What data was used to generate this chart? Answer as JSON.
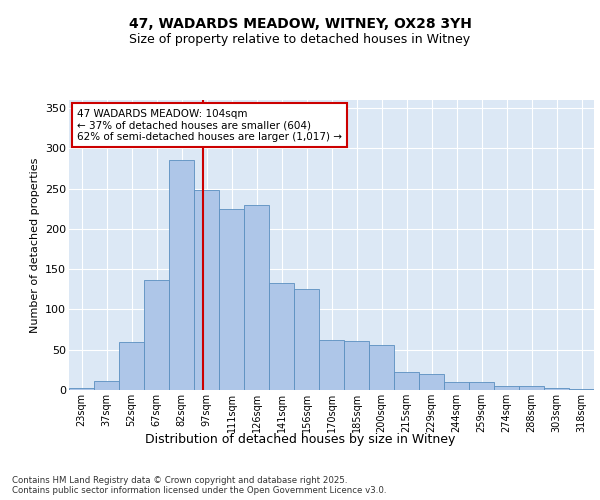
{
  "title_line1": "47, WADARDS MEADOW, WITNEY, OX28 3YH",
  "title_line2": "Size of property relative to detached houses in Witney",
  "xlabel": "Distribution of detached houses by size in Witney",
  "ylabel": "Number of detached properties",
  "categories": [
    "23sqm",
    "37sqm",
    "52sqm",
    "67sqm",
    "82sqm",
    "97sqm",
    "111sqm",
    "126sqm",
    "141sqm",
    "156sqm",
    "170sqm",
    "185sqm",
    "200sqm",
    "215sqm",
    "229sqm",
    "244sqm",
    "259sqm",
    "274sqm",
    "288sqm",
    "303sqm",
    "318sqm"
  ],
  "values": [
    2,
    11,
    59,
    137,
    285,
    248,
    225,
    230,
    133,
    125,
    62,
    61,
    56,
    22,
    20,
    10,
    10,
    5,
    5,
    2,
    1
  ],
  "bar_color": "#aec6e8",
  "bar_edge_color": "#5a8fc0",
  "background_color": "#dce8f5",
  "grid_color": "#ffffff",
  "vline_color": "#cc0000",
  "annotation_text": "47 WADARDS MEADOW: 104sqm\n← 37% of detached houses are smaller (604)\n62% of semi-detached houses are larger (1,017) →",
  "annotation_box_color": "#ffffff",
  "annotation_box_edge": "#cc0000",
  "footer_text": "Contains HM Land Registry data © Crown copyright and database right 2025.\nContains public sector information licensed under the Open Government Licence v3.0.",
  "ylim": [
    0,
    360
  ],
  "yticks": [
    0,
    50,
    100,
    150,
    200,
    250,
    300,
    350
  ]
}
